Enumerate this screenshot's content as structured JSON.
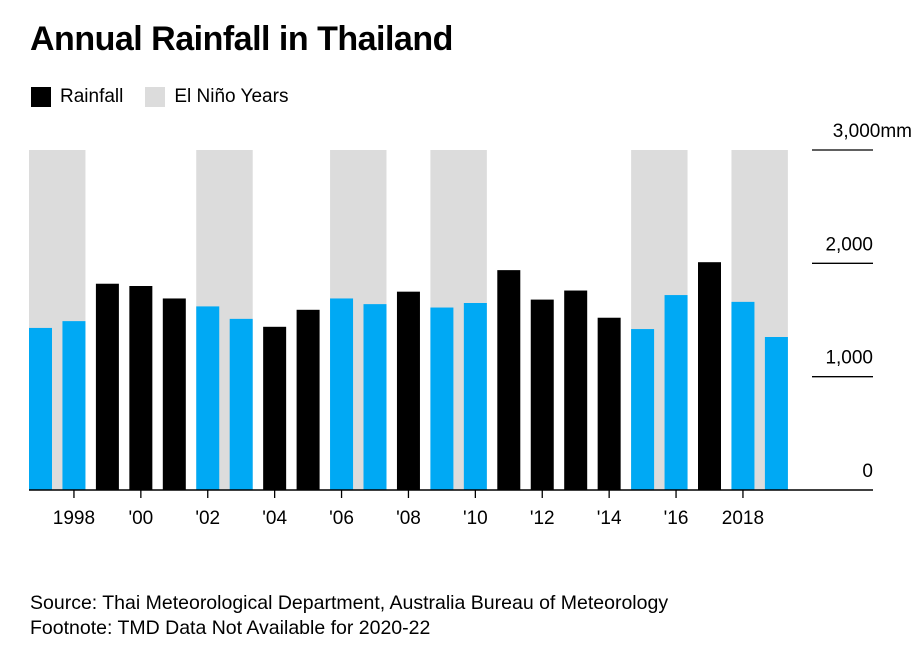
{
  "title": "Annual Rainfall in Thailand",
  "legend": [
    {
      "label": "Rainfall",
      "color": "#000000"
    },
    {
      "label": "El Niño Years",
      "color": "#dcdcdc"
    }
  ],
  "colors": {
    "rainfall": "#000000",
    "el_nino_bar": "#00a9f4",
    "el_nino_band": "#dcdcdc"
  },
  "chart_data": {
    "type": "bar",
    "categories": [
      "1997",
      "1998",
      "1999",
      "2000",
      "2001",
      "2002",
      "2003",
      "2004",
      "2005",
      "2006",
      "2007",
      "2008",
      "2009",
      "2010",
      "2011",
      "2012",
      "2013",
      "2014",
      "2015",
      "2016",
      "2017",
      "2018",
      "2019"
    ],
    "series": [
      {
        "name": "Rainfall",
        "values": [
          1430,
          1490,
          1820,
          1800,
          1690,
          1620,
          1510,
          1440,
          1590,
          1690,
          1640,
          1750,
          1610,
          1650,
          1940,
          1680,
          1760,
          1520,
          1420,
          1720,
          2010,
          1660,
          1350
        ]
      }
    ],
    "el_nino_years": [
      "1997",
      "1998",
      "2002",
      "2003",
      "2006",
      "2007",
      "2009",
      "2010",
      "2015",
      "2016",
      "2018",
      "2019"
    ],
    "x_tick_labels": [
      {
        "category": "1998",
        "label": "1998"
      },
      {
        "category": "2000",
        "label": "'00"
      },
      {
        "category": "2002",
        "label": "'02"
      },
      {
        "category": "2004",
        "label": "'04"
      },
      {
        "category": "2006",
        "label": "'06"
      },
      {
        "category": "2008",
        "label": "'08"
      },
      {
        "category": "2010",
        "label": "'10"
      },
      {
        "category": "2012",
        "label": "'12"
      },
      {
        "category": "2014",
        "label": "'14"
      },
      {
        "category": "2016",
        "label": "'16"
      },
      {
        "category": "2018",
        "label": "2018"
      }
    ],
    "y_ticks": [
      {
        "value": 0,
        "label": "0"
      },
      {
        "value": 1000,
        "label": "1,000"
      },
      {
        "value": 2000,
        "label": "2,000"
      },
      {
        "value": 3000,
        "label": "3,000mm"
      }
    ],
    "ylim": [
      0,
      3000
    ],
    "grid": false,
    "legend_position": "top-left"
  },
  "footer": {
    "source": "Source: Thai Meteorological Department, Australia Bureau of Meteorology",
    "footnote": "Footnote: TMD Data Not Available for 2020-22"
  }
}
